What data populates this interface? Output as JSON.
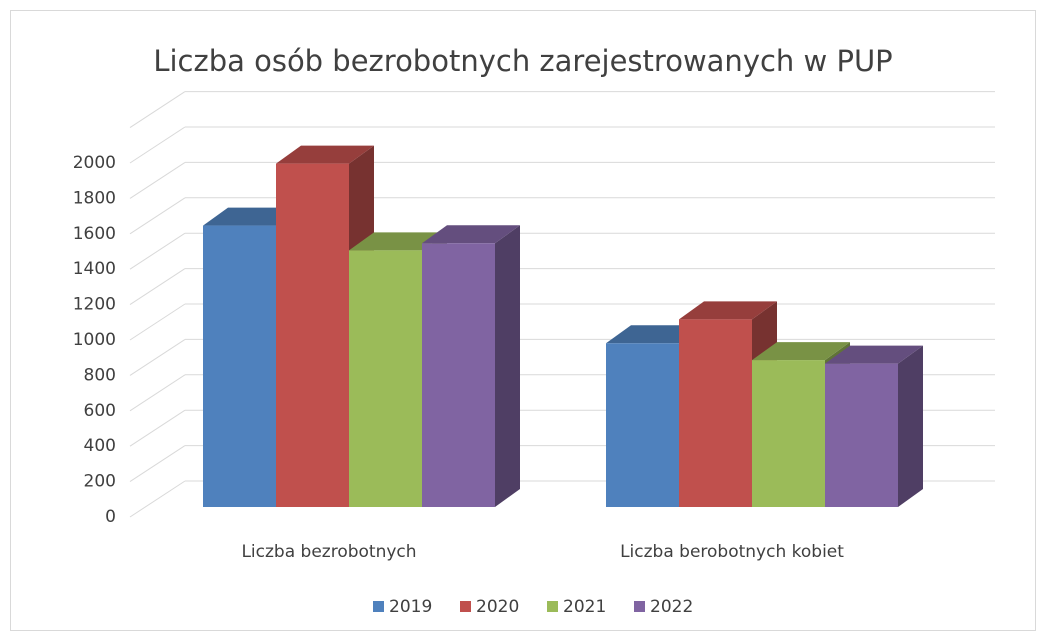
{
  "chart_data": {
    "type": "bar3d",
    "title": "Liczba osób bezrobotnych zarejestrowanych w PUP",
    "categories": [
      "Liczba bezrobotnych",
      "Liczba berobotnych kobiet"
    ],
    "series": [
      {
        "name": "2019",
        "color": "#4f81bd",
        "values": [
          1590,
          925
        ]
      },
      {
        "name": "2020",
        "color": "#c0504d",
        "values": [
          1940,
          1060
        ]
      },
      {
        "name": "2021",
        "color": "#9bbb59",
        "values": [
          1450,
          830
        ]
      },
      {
        "name": "2022",
        "color": "#8064a2",
        "values": [
          1490,
          810
        ]
      }
    ],
    "ylim": [
      0,
      2200
    ],
    "yticks": [
      0,
      200,
      400,
      600,
      800,
      1000,
      1200,
      1400,
      1600,
      1800,
      2000
    ],
    "grid": true,
    "legend": "bottom"
  }
}
